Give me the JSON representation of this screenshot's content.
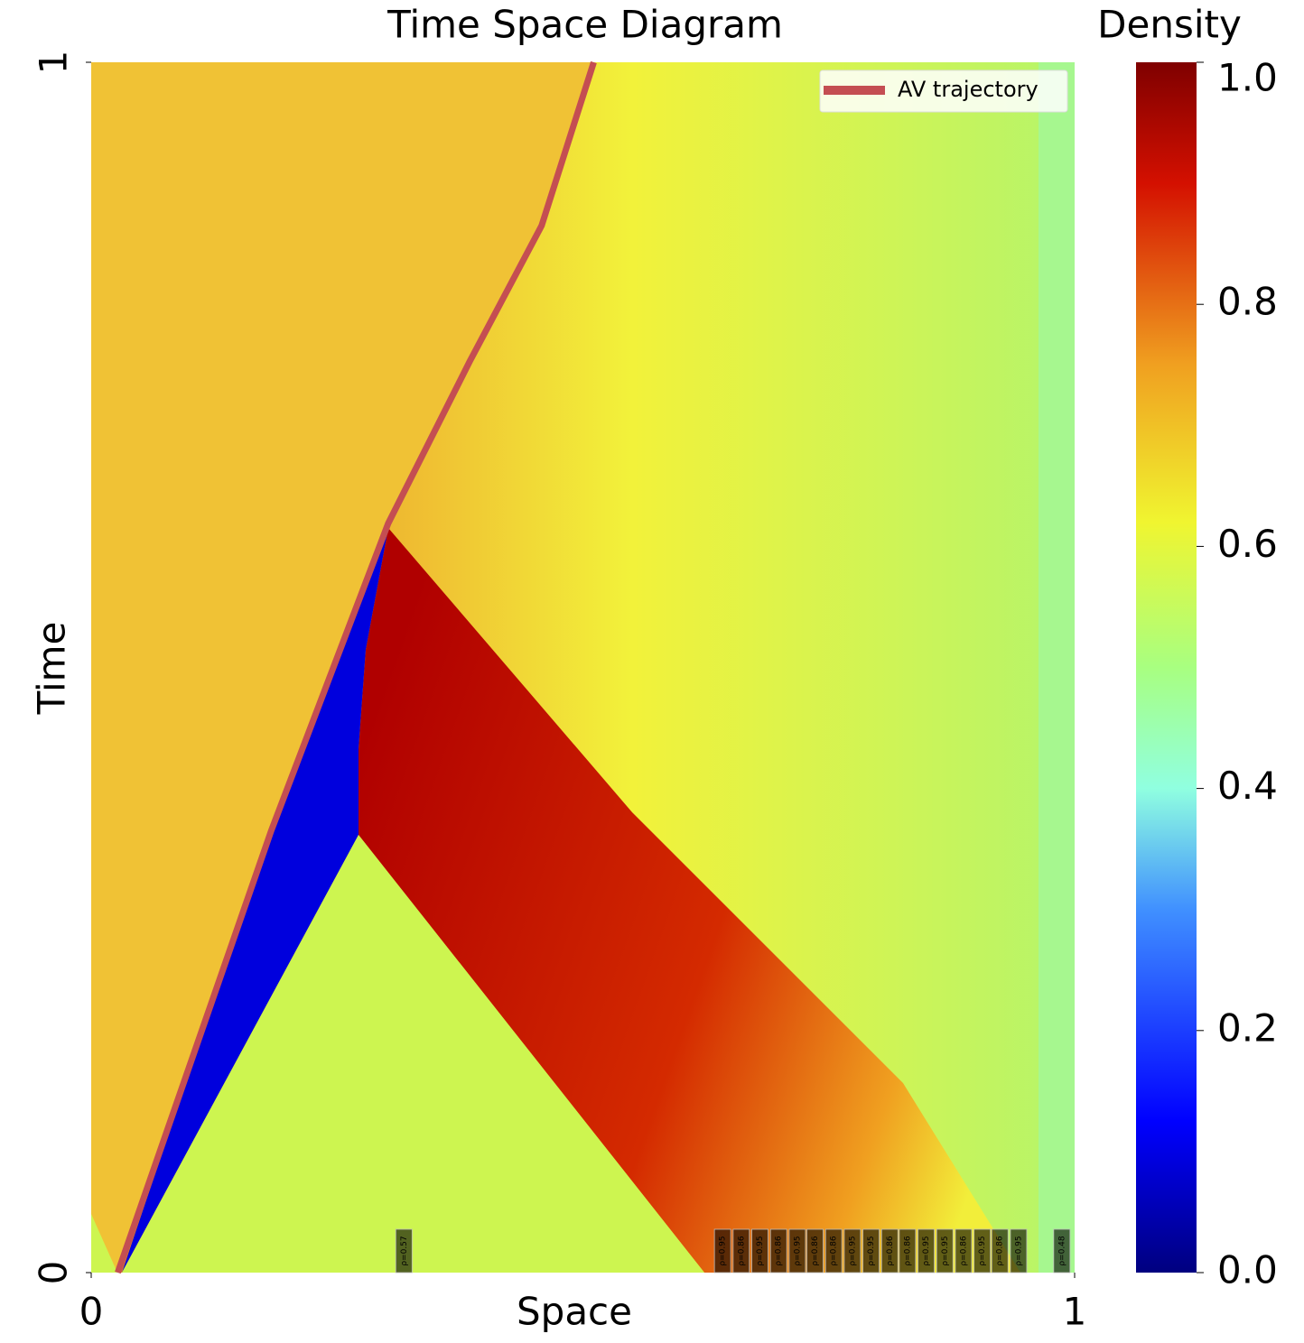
{
  "chart_data": {
    "type": "heatmap",
    "title": "Time Space Diagram",
    "xlabel": "Space",
    "ylabel": "Time",
    "xlim": [
      0,
      1
    ],
    "ylim": [
      0,
      1
    ],
    "xticks": [
      0,
      1
    ],
    "yticks": [
      0,
      1
    ],
    "colorbar": {
      "label": "Density",
      "lim": [
        0,
        1
      ],
      "ticks": [
        {
          "value": 0,
          "label": "0.0"
        },
        0.2,
        0.4,
        0.6,
        0.8,
        {
          "value": 1,
          "label": "1.0"
        }
      ]
    },
    "legend": "upper right",
    "series": [
      {
        "name": "AV trajectory",
        "color": "#c44e52",
        "x": [
          0.027,
          0.183,
          0.302,
          0.385,
          0.458,
          0.511
        ],
        "values": [
          0,
          0.365,
          0.619,
          0.753,
          0.865,
          1.0
        ]
      }
    ],
    "initial_densities": {
      "x": [
        0.318,
        0.642,
        0.661,
        0.68,
        0.699,
        0.718,
        0.736,
        0.755,
        0.774,
        0.793,
        0.812,
        0.83,
        0.849,
        0.868,
        0.887,
        0.906,
        0.924,
        0.943,
        0.987
      ],
      "values": [
        0.57,
        0.95,
        0.86,
        0.95,
        0.86,
        0.95,
        0.86,
        0.86,
        0.95,
        0.95,
        0.86,
        0.86,
        0.95,
        0.95,
        0.86,
        0.95,
        0.86,
        0.95,
        0.48
      ],
      "value_labels": [
        "ρ=0.57",
        "ρ=0.95",
        "ρ=0.86",
        "ρ=0.95",
        "ρ=0.86",
        "ρ=0.95",
        "ρ=0.86",
        "ρ=0.86",
        "ρ=0.95",
        "ρ=0.95",
        "ρ=0.86",
        "ρ=0.86",
        "ρ=0.95",
        "ρ=0.95",
        "ρ=0.86",
        "ρ=0.95",
        "ρ=0.86",
        "ρ=0.95",
        "ρ=0.48"
      ]
    }
  }
}
